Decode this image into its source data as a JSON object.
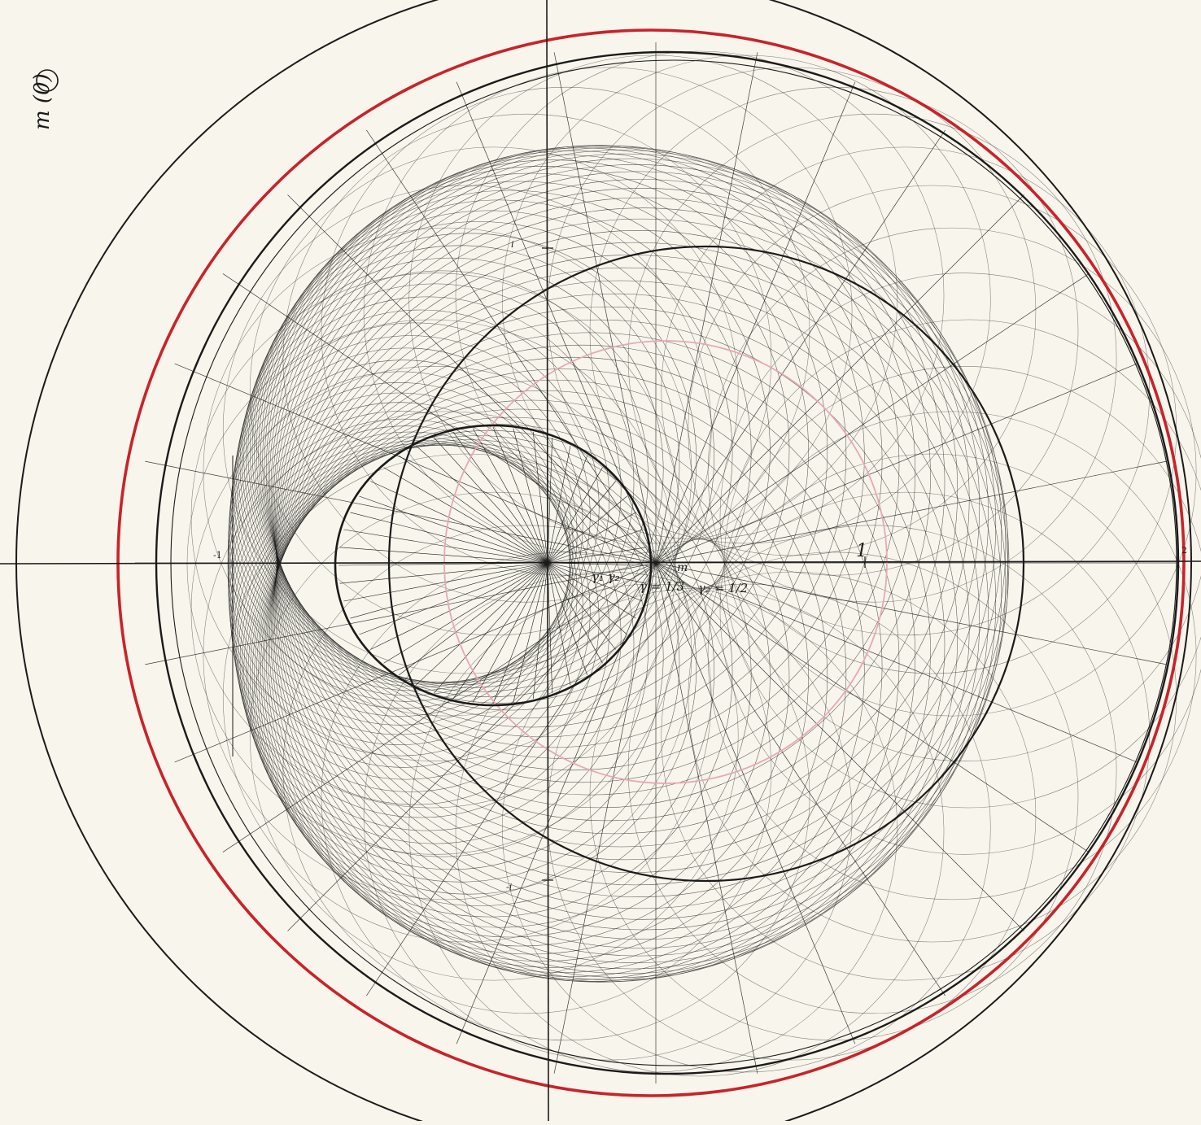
{
  "sheet": {
    "corner_note": "m (0)"
  },
  "axis_labels": {
    "neg_one": "-1",
    "pos_one": "1",
    "two": "2",
    "i": "i",
    "neg_i": "-i"
  },
  "annotations": {
    "gamma1_gamma2": "γ₁ γ₂",
    "gamma_third": "γ = 1/3",
    "m": "m",
    "gamma2_half": "γ₂ = 1/2"
  },
  "colors": {
    "paper": "#f8f5ec",
    "ink": "#1a1a1a",
    "red_circle": "#c8232a",
    "pink_circle": "#e6a9b6",
    "green_circle": "#9fcfbd"
  },
  "icons": [
    "circled-zero-mark"
  ]
}
